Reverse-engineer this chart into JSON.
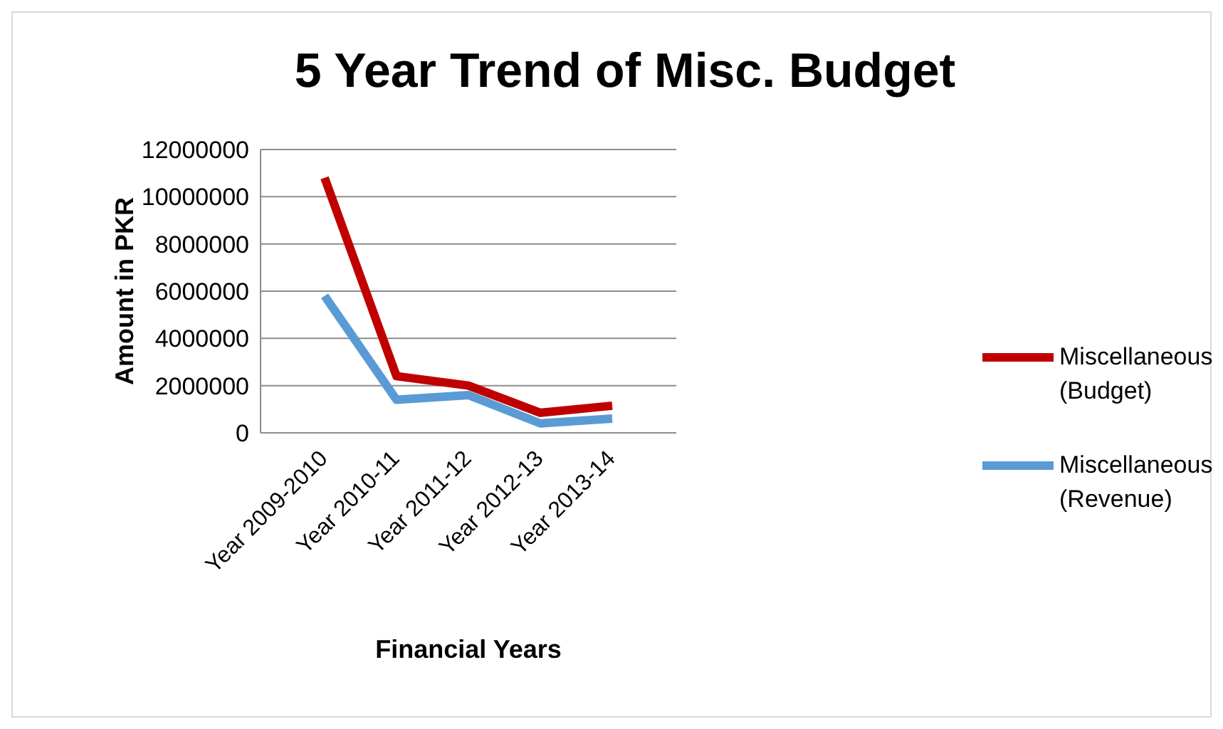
{
  "chart_data": {
    "type": "line",
    "title": "5 Year Trend of Misc. Budget",
    "xlabel": "Financial Years",
    "ylabel": "Amount in PKR",
    "categories": [
      "Year 2009-2010",
      "Year 2010-11",
      "Year 2011-12",
      "Year 2012-13",
      "Year 2013-14"
    ],
    "series": [
      {
        "name": "Miscellaneous (Budget)",
        "color": "#c00000",
        "values": [
          10800000,
          2400000,
          2000000,
          850000,
          1150000
        ]
      },
      {
        "name": "Miscellaneous (Revenue)",
        "color": "#5b9bd5",
        "values": [
          5800000,
          1400000,
          1600000,
          400000,
          600000
        ]
      }
    ],
    "ylim": [
      0,
      12000000
    ],
    "yticks": [
      0,
      2000000,
      4000000,
      6000000,
      8000000,
      10000000,
      12000000
    ],
    "grid": "y",
    "legend": "right",
    "marker": "none",
    "line_style": "solid"
  }
}
